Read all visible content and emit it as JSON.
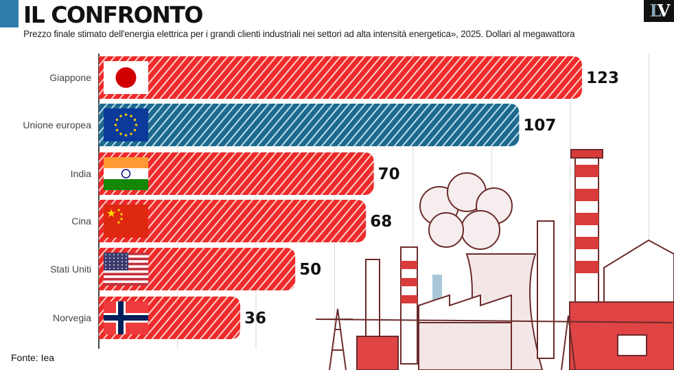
{
  "header": {
    "title": "IL CONFRONTO",
    "subtitle": "Prezzo finale stimato dell'energia elettrica per i grandi clienti industriali nei settori ad alta intensità energetica», 2025. Dollari al megawattora",
    "logo": "LV"
  },
  "footer": {
    "source": "Fonte: Iea"
  },
  "colors": {
    "red": "#ee2a2a",
    "blue": "#1e6a8e",
    "accent": "#2e7dab"
  },
  "chart_data": {
    "type": "bar",
    "orientation": "horizontal",
    "title": "IL CONFRONTO",
    "xlabel": "",
    "ylabel": "",
    "xlim": [
      0,
      140
    ],
    "grid": true,
    "categories": [
      "Giappone",
      "Unione europea",
      "India",
      "Cina",
      "Stati Uniti",
      "Norvegia"
    ],
    "values": [
      123,
      107,
      70,
      68,
      50,
      36
    ],
    "flags": [
      "japan-flag",
      "eu-flag",
      "india-flag",
      "china-flag",
      "usa-flag",
      "norway-flag"
    ],
    "bar_colors": [
      "red",
      "blue",
      "red",
      "red",
      "red",
      "red"
    ]
  }
}
